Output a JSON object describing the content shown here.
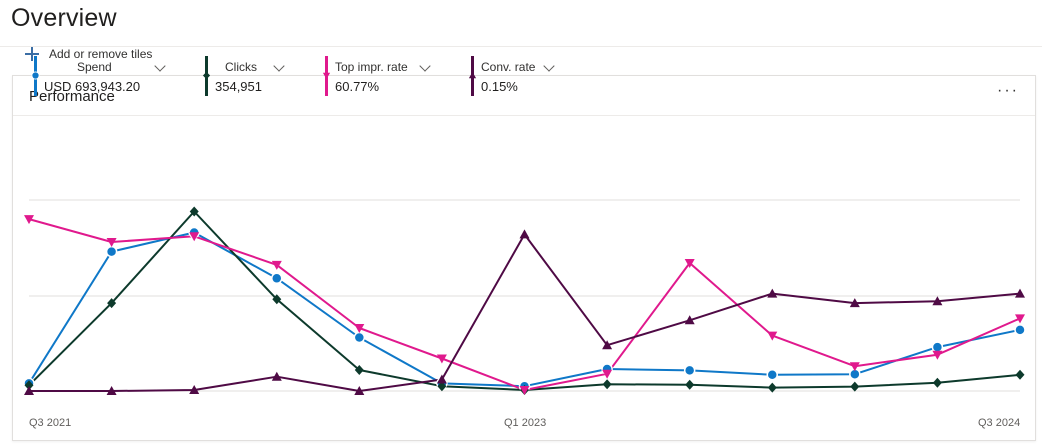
{
  "page": {
    "title": "Overview",
    "add_tiles": "Add or remove tiles"
  },
  "card": {
    "title": "Performance",
    "more": "···"
  },
  "metrics": [
    {
      "name": "Spend",
      "value": "USD 693,943.20",
      "color": "#0f78c8",
      "marker": "circle"
    },
    {
      "name": "Clicks",
      "value": "354,951",
      "color": "#0d3a2c",
      "marker": "diamond"
    },
    {
      "name": "Top impr. rate",
      "value": "60.77%",
      "color": "#e0198d",
      "marker": "triangle-down"
    },
    {
      "name": "Conv. rate",
      "value": "0.15%",
      "color": "#4f0a45",
      "marker": "triangle-up"
    }
  ],
  "chart_data": {
    "type": "line",
    "x_tick_labels": [
      "Q3 2021",
      "Q1 2023",
      "Q3 2024"
    ],
    "grid": true,
    "legend": "top-left",
    "series": [
      {
        "name": "Spend",
        "color": "#0f78c8",
        "marker": "circle",
        "values": [
          0.04,
          0.73,
          0.83,
          0.59,
          0.28,
          0.04,
          0.025,
          0.115,
          0.108,
          0.085,
          0.088,
          0.23,
          0.32
        ]
      },
      {
        "name": "Clicks",
        "color": "#0d3a2c",
        "marker": "diamond",
        "values": [
          0.03,
          0.46,
          0.94,
          0.48,
          0.11,
          0.025,
          0.005,
          0.035,
          0.033,
          0.018,
          0.023,
          0.043,
          0.085
        ]
      },
      {
        "name": "Top impr. rate",
        "color": "#e0198d",
        "marker": "triangle-down",
        "values": [
          0.9,
          0.78,
          0.81,
          0.66,
          0.33,
          0.17,
          0.005,
          0.09,
          0.67,
          0.29,
          0.13,
          0.19,
          0.38
        ]
      },
      {
        "name": "Conv. rate",
        "color": "#4f0a45",
        "marker": "triangle-up",
        "values": [
          0.0,
          0.0,
          0.005,
          0.075,
          0.0,
          0.06,
          0.82,
          0.24,
          0.37,
          0.51,
          0.46,
          0.47,
          0.51
        ]
      }
    ]
  }
}
